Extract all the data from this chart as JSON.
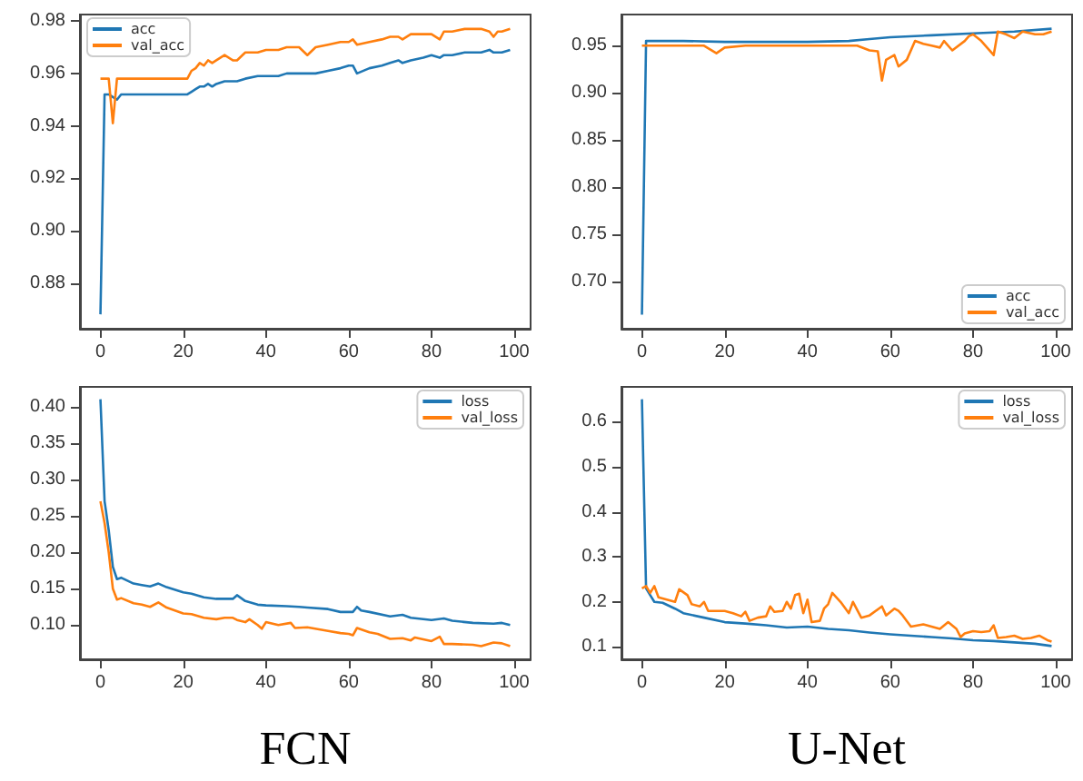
{
  "chart_data": [
    {
      "type": "line",
      "xlim": [
        -4.95,
        103.95
      ],
      "xticks": [
        0,
        20,
        40,
        60,
        80,
        100
      ],
      "ylim": [
        0.8625,
        0.9825
      ],
      "yticks": [
        0.88,
        {
          "value": 0.9,
          "label": "0.90"
        },
        0.92,
        0.94,
        0.96,
        0.98
      ],
      "legend": "top left",
      "grid": false,
      "series": [
        {
          "name": "acc",
          "color": "#1f77b4",
          "x": [
            0,
            1,
            2,
            3,
            4,
            5,
            8,
            10,
            15,
            20,
            21,
            22,
            23,
            24,
            25,
            26,
            27,
            28,
            30,
            32,
            33,
            35,
            38,
            40,
            43,
            45,
            46,
            48,
            50,
            52,
            55,
            58,
            60,
            61,
            62,
            65,
            68,
            70,
            72,
            73,
            75,
            78,
            80,
            82,
            83,
            85,
            88,
            90,
            92,
            94,
            95,
            96,
            97,
            99
          ],
          "values": [
            0.868,
            0.952,
            0.952,
            0.951,
            0.95,
            0.952,
            0.952,
            0.952,
            0.952,
            0.952,
            0.952,
            0.953,
            0.954,
            0.955,
            0.955,
            0.956,
            0.955,
            0.956,
            0.957,
            0.957,
            0.957,
            0.958,
            0.959,
            0.959,
            0.959,
            0.96,
            0.96,
            0.96,
            0.96,
            0.96,
            0.961,
            0.962,
            0.963,
            0.963,
            0.96,
            0.962,
            0.963,
            0.964,
            0.965,
            0.964,
            0.965,
            0.966,
            0.967,
            0.966,
            0.967,
            0.967,
            0.968,
            0.968,
            0.968,
            0.969,
            0.968,
            0.968,
            0.968,
            0.969
          ]
        },
        {
          "name": "val_acc",
          "color": "#ff7f0e",
          "x": [
            0,
            1,
            2,
            3,
            4,
            5,
            8,
            10,
            15,
            20,
            21,
            22,
            23,
            24,
            25,
            26,
            27,
            28,
            30,
            32,
            33,
            35,
            38,
            40,
            43,
            45,
            46,
            48,
            50,
            52,
            55,
            58,
            60,
            61,
            62,
            65,
            68,
            70,
            72,
            73,
            75,
            78,
            80,
            82,
            83,
            85,
            88,
            90,
            92,
            94,
            95,
            96,
            97,
            99
          ],
          "values": [
            0.958,
            0.958,
            0.958,
            0.941,
            0.958,
            0.958,
            0.958,
            0.958,
            0.958,
            0.958,
            0.958,
            0.961,
            0.962,
            0.964,
            0.963,
            0.965,
            0.964,
            0.965,
            0.967,
            0.965,
            0.965,
            0.968,
            0.968,
            0.969,
            0.969,
            0.97,
            0.97,
            0.97,
            0.967,
            0.97,
            0.971,
            0.972,
            0.972,
            0.973,
            0.971,
            0.972,
            0.973,
            0.974,
            0.974,
            0.973,
            0.975,
            0.975,
            0.975,
            0.973,
            0.976,
            0.976,
            0.977,
            0.977,
            0.977,
            0.976,
            0.974,
            0.976,
            0.976,
            0.977
          ]
        }
      ]
    },
    {
      "type": "line",
      "xlim": [
        -4.95,
        103.95
      ],
      "xticks": [
        0,
        20,
        40,
        60,
        80,
        100
      ],
      "ylim": [
        0.65,
        0.983
      ],
      "yticks": [
        {
          "value": 0.7,
          "label": "0.70"
        },
        0.75,
        {
          "value": 0.8,
          "label": "0.80"
        },
        0.85,
        {
          "value": 0.9,
          "label": "0.90"
        },
        0.95
      ],
      "legend": "bottom right",
      "grid": false,
      "series": [
        {
          "name": "acc",
          "color": "#1f77b4",
          "x": [
            0,
            1,
            10,
            20,
            30,
            40,
            50,
            55,
            60,
            70,
            80,
            90,
            99
          ],
          "values": [
            0.665,
            0.955,
            0.955,
            0.954,
            0.954,
            0.954,
            0.955,
            0.957,
            0.959,
            0.961,
            0.963,
            0.965,
            0.968
          ]
        },
        {
          "name": "val_acc",
          "color": "#ff7f0e",
          "x": [
            0,
            5,
            10,
            15,
            18,
            20,
            25,
            30,
            40,
            50,
            52,
            55,
            57,
            58,
            59,
            61,
            62,
            64,
            66,
            68,
            70,
            72,
            73,
            75,
            78,
            79,
            80,
            82,
            85,
            86,
            88,
            90,
            92,
            95,
            97,
            99
          ],
          "values": [
            0.95,
            0.95,
            0.95,
            0.95,
            0.942,
            0.948,
            0.95,
            0.95,
            0.95,
            0.95,
            0.95,
            0.945,
            0.944,
            0.913,
            0.935,
            0.94,
            0.928,
            0.935,
            0.955,
            0.952,
            0.95,
            0.948,
            0.955,
            0.945,
            0.955,
            0.96,
            0.962,
            0.955,
            0.94,
            0.965,
            0.962,
            0.958,
            0.965,
            0.962,
            0.962,
            0.965
          ]
        }
      ]
    },
    {
      "type": "line",
      "xlabel": "FCN",
      "xlim": [
        -4.95,
        103.95
      ],
      "xticks": [
        0,
        20,
        40,
        60,
        80,
        100
      ],
      "ylim": [
        0.053,
        0.427
      ],
      "yticks": [
        {
          "value": 0.1,
          "label": "0.10"
        },
        0.15,
        {
          "value": 0.2,
          "label": "0.20"
        },
        0.25,
        {
          "value": 0.3,
          "label": "0.30"
        },
        0.35,
        {
          "value": 0.4,
          "label": "0.40"
        }
      ],
      "legend": "top right",
      "grid": false,
      "series": [
        {
          "name": "loss",
          "color": "#1f77b4",
          "x": [
            0,
            1,
            2,
            3,
            4,
            5,
            8,
            10,
            12,
            14,
            16,
            20,
            22,
            25,
            28,
            30,
            32,
            33,
            35,
            38,
            40,
            45,
            48,
            50,
            55,
            58,
            60,
            61,
            62,
            63,
            65,
            70,
            73,
            75,
            80,
            83,
            85,
            90,
            95,
            97,
            99
          ],
          "values": [
            0.41,
            0.27,
            0.23,
            0.18,
            0.163,
            0.165,
            0.157,
            0.155,
            0.153,
            0.157,
            0.152,
            0.145,
            0.143,
            0.138,
            0.136,
            0.136,
            0.136,
            0.141,
            0.133,
            0.128,
            0.127,
            0.126,
            0.125,
            0.124,
            0.122,
            0.118,
            0.118,
            0.118,
            0.125,
            0.12,
            0.118,
            0.112,
            0.114,
            0.11,
            0.107,
            0.109,
            0.106,
            0.103,
            0.102,
            0.103,
            0.1
          ]
        },
        {
          "name": "val_loss",
          "color": "#ff7f0e",
          "x": [
            0,
            1,
            2,
            3,
            4,
            5,
            8,
            10,
            12,
            14,
            16,
            20,
            22,
            25,
            28,
            30,
            32,
            33,
            35,
            36,
            38,
            39,
            40,
            43,
            46,
            47,
            50,
            55,
            58,
            60,
            61,
            62,
            65,
            67,
            70,
            73,
            75,
            76,
            80,
            82,
            83,
            85,
            90,
            92,
            95,
            97,
            99
          ],
          "values": [
            0.27,
            0.24,
            0.2,
            0.15,
            0.135,
            0.137,
            0.13,
            0.128,
            0.125,
            0.131,
            0.124,
            0.116,
            0.115,
            0.11,
            0.108,
            0.11,
            0.11,
            0.107,
            0.104,
            0.108,
            0.1,
            0.095,
            0.104,
            0.1,
            0.103,
            0.096,
            0.097,
            0.092,
            0.089,
            0.088,
            0.086,
            0.096,
            0.09,
            0.088,
            0.081,
            0.082,
            0.079,
            0.083,
            0.078,
            0.084,
            0.074,
            0.074,
            0.073,
            0.071,
            0.076,
            0.075,
            0.071
          ]
        }
      ]
    },
    {
      "type": "line",
      "xlabel": "U-Net",
      "xlim": [
        -4.95,
        103.95
      ],
      "xticks": [
        0,
        20,
        40,
        60,
        80,
        100
      ],
      "ylim": [
        0.0725,
        0.6775
      ],
      "yticks": [
        0.1,
        0.2,
        0.3,
        0.4,
        0.5,
        0.6
      ],
      "legend": "top right",
      "grid": false,
      "series": [
        {
          "name": "loss",
          "color": "#1f77b4",
          "x": [
            0,
            1,
            2,
            3,
            5,
            8,
            10,
            15,
            20,
            25,
            30,
            35,
            40,
            45,
            50,
            55,
            60,
            65,
            70,
            75,
            80,
            85,
            90,
            95,
            99
          ],
          "values": [
            0.65,
            0.23,
            0.215,
            0.2,
            0.198,
            0.185,
            0.175,
            0.165,
            0.155,
            0.152,
            0.148,
            0.143,
            0.145,
            0.14,
            0.137,
            0.132,
            0.128,
            0.125,
            0.122,
            0.119,
            0.115,
            0.113,
            0.11,
            0.107,
            0.102
          ]
        },
        {
          "name": "val_loss",
          "color": "#ff7f0e",
          "x": [
            0,
            1,
            2,
            3,
            4,
            6,
            8,
            9,
            11,
            12,
            14,
            15,
            16,
            20,
            22,
            24,
            25,
            26,
            28,
            30,
            31,
            32,
            34,
            35,
            36,
            37,
            38,
            39,
            40,
            41,
            43,
            44,
            45,
            46,
            48,
            50,
            51,
            53,
            55,
            58,
            59,
            61,
            62,
            63,
            65,
            68,
            70,
            72,
            74,
            76,
            77,
            78,
            80,
            82,
            84,
            85,
            86,
            88,
            90,
            92,
            94,
            96,
            98,
            99
          ],
          "values": [
            0.23,
            0.235,
            0.22,
            0.235,
            0.21,
            0.205,
            0.2,
            0.228,
            0.215,
            0.195,
            0.19,
            0.2,
            0.18,
            0.18,
            0.175,
            0.168,
            0.178,
            0.158,
            0.165,
            0.168,
            0.19,
            0.178,
            0.18,
            0.2,
            0.185,
            0.215,
            0.218,
            0.175,
            0.205,
            0.155,
            0.158,
            0.185,
            0.195,
            0.22,
            0.2,
            0.175,
            0.2,
            0.165,
            0.17,
            0.19,
            0.17,
            0.185,
            0.18,
            0.17,
            0.145,
            0.15,
            0.145,
            0.14,
            0.155,
            0.14,
            0.122,
            0.13,
            0.135,
            0.133,
            0.135,
            0.148,
            0.12,
            0.122,
            0.125,
            0.118,
            0.12,
            0.125,
            0.115,
            0.112
          ]
        }
      ]
    }
  ]
}
